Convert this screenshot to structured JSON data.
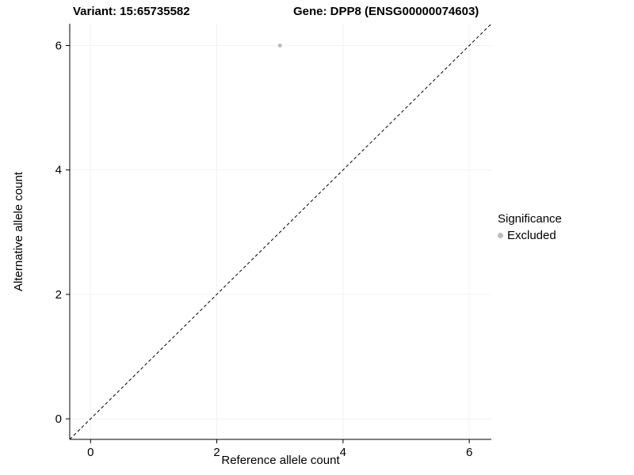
{
  "titles": {
    "variant": "Variant: 15:65735582",
    "gene": "Gene: DPP8 (ENSG00000074603)"
  },
  "chart_data": {
    "type": "scatter",
    "title_left": "Variant: 15:65735582",
    "title_right": "Gene: DPP8 (ENSG00000074603)",
    "xlabel": "Reference allele count",
    "ylabel": "Alternative allele count",
    "xlim": [
      -0.33,
      6.35
    ],
    "ylim": [
      -0.33,
      6.35
    ],
    "xticks": [
      0,
      2,
      4,
      6
    ],
    "yticks": [
      0,
      2,
      4,
      6
    ],
    "grid": true,
    "grid_color": "#f2f2f2",
    "axis_color": "#000000",
    "identity_line": {
      "style": "dashed",
      "color": "#000000",
      "from": "lower-left",
      "to": "upper-right"
    },
    "series": [
      {
        "name": "Excluded",
        "color": "#bdbdbd",
        "point_radius": 2.5,
        "points": [
          {
            "x": 3,
            "y": 6
          }
        ]
      }
    ],
    "legend": {
      "title": "Significance",
      "position": "right",
      "entries": [
        {
          "label": "Excluded",
          "color": "#bdbdbd"
        }
      ]
    }
  }
}
